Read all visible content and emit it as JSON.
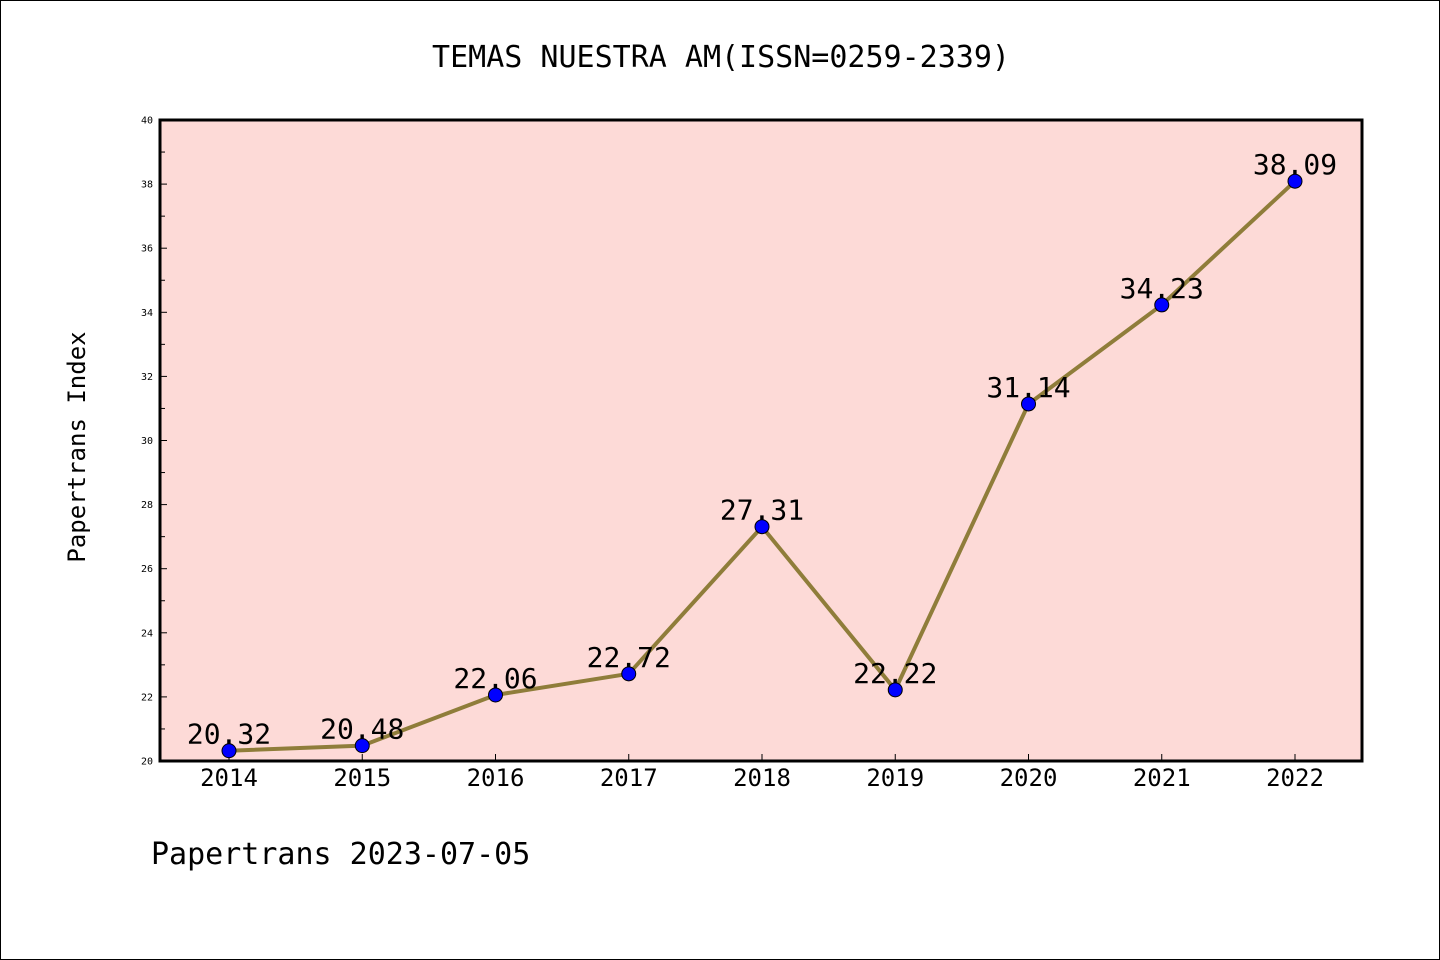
{
  "chart_data": {
    "type": "line",
    "title": "TEMAS NUESTRA AM(ISSN=0259-2339)",
    "ylabel": "Papertrans Index",
    "xlabel": "",
    "categories": [
      "2014",
      "2015",
      "2016",
      "2017",
      "2018",
      "2019",
      "2020",
      "2021",
      "2022"
    ],
    "values": [
      20.32,
      20.48,
      22.06,
      22.72,
      27.31,
      22.22,
      31.14,
      34.23,
      38.09
    ],
    "data_labels": [
      "20.32",
      "20.48",
      "22.06",
      "22.72",
      "27.31",
      "22.22",
      "31.14",
      "34.23",
      "38.09"
    ],
    "ylim": [
      20,
      40
    ],
    "yticks": [
      "20",
      "22",
      "24",
      "26",
      "28",
      "30",
      "32",
      "34",
      "36",
      "38",
      "40"
    ],
    "grid": false,
    "plot_background": "#fddad7",
    "line_color": "#8f7d3a",
    "marker_color": "#0000ff"
  },
  "footer": "Papertrans 2023-07-05"
}
